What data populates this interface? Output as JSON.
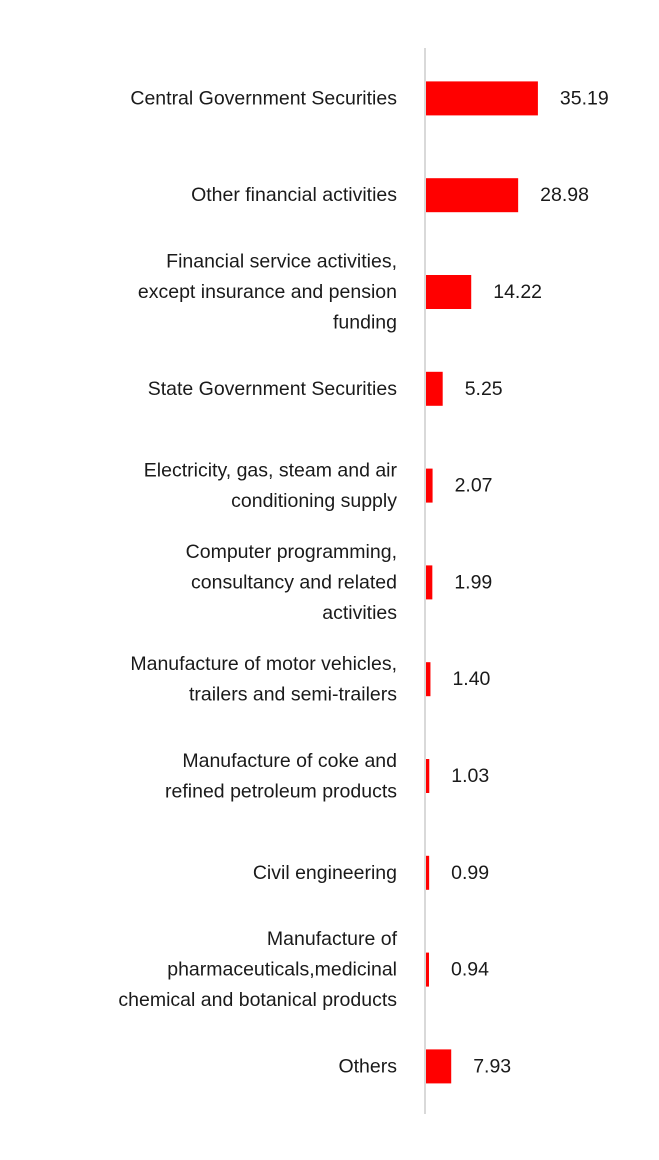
{
  "chart_data": {
    "type": "bar",
    "orientation": "horizontal",
    "categories": [
      "Central Government Securities",
      "Other financial activities",
      "Financial service activities, except insurance and pension funding",
      "State Government Securities",
      "Electricity, gas, steam and air conditioning supply",
      "Computer programming, consultancy and related activities",
      "Manufacture of motor vehicles, trailers and semi-trailers",
      "Manufacture of coke and refined petroleum products",
      "Civil engineering",
      "Manufacture of pharmaceuticals,medicinal chemical and botanical products",
      "Others"
    ],
    "category_lines": [
      [
        "Central Government Securities"
      ],
      [
        "Other financial activities"
      ],
      [
        "Financial service activities,",
        "except insurance and pension",
        "funding"
      ],
      [
        "State Government Securities"
      ],
      [
        "Electricity, gas, steam and air",
        "conditioning supply"
      ],
      [
        "Computer programming,",
        "consultancy and related",
        "activities"
      ],
      [
        "Manufacture of motor vehicles,",
        "trailers and semi-trailers"
      ],
      [
        "Manufacture of coke and",
        "refined petroleum products"
      ],
      [
        "Civil engineering"
      ],
      [
        "Manufacture of",
        "pharmaceuticals,medicinal",
        "chemical and botanical products"
      ],
      [
        "Others"
      ]
    ],
    "values": [
      35.19,
      28.98,
      14.22,
      5.25,
      2.07,
      1.99,
      1.4,
      1.03,
      0.99,
      0.94,
      7.93
    ],
    "value_labels": [
      "35.19",
      "28.98",
      "14.22",
      "5.25",
      "2.07",
      "1.99",
      "1.40",
      "1.03",
      "0.99",
      "0.94",
      "7.93"
    ],
    "title": "",
    "xlabel": "",
    "ylabel": "",
    "grid": false,
    "legend": "none",
    "colors": {
      "bar": "#ff0000",
      "axis": "#d9d9d9",
      "text": "#1a1a1a"
    }
  }
}
